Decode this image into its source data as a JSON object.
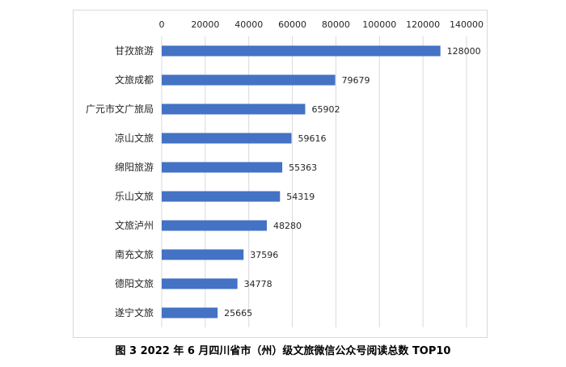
{
  "caption": "图 3  2022 年 6 月四川省市（州）级文旅微信公众号阅读总数 TOP10",
  "chart_data": {
    "type": "bar",
    "orientation": "horizontal",
    "title": "",
    "xlabel": "",
    "ylabel": "",
    "xlim": [
      0,
      140000
    ],
    "x_ticks": [
      0,
      20000,
      40000,
      60000,
      80000,
      100000,
      120000,
      140000
    ],
    "x_axis_position": "top",
    "grid": true,
    "legend": "none",
    "bar_color": "#4472c4",
    "categories": [
      "甘孜旅游",
      "文旅成都",
      "广元市文广旅局",
      "凉山文旅",
      "绵阳旅游",
      "乐山文旅",
      "文旅泸州",
      "南充文旅",
      "德阳文旅",
      "遂宁文旅"
    ],
    "values": [
      128000,
      79679,
      65902,
      59616,
      55363,
      54319,
      48280,
      37596,
      34778,
      25665
    ],
    "data_labels": [
      "128000",
      "79679",
      "65902",
      "59616",
      "55363",
      "54319",
      "48280",
      "37596",
      "34778",
      "25665"
    ]
  }
}
